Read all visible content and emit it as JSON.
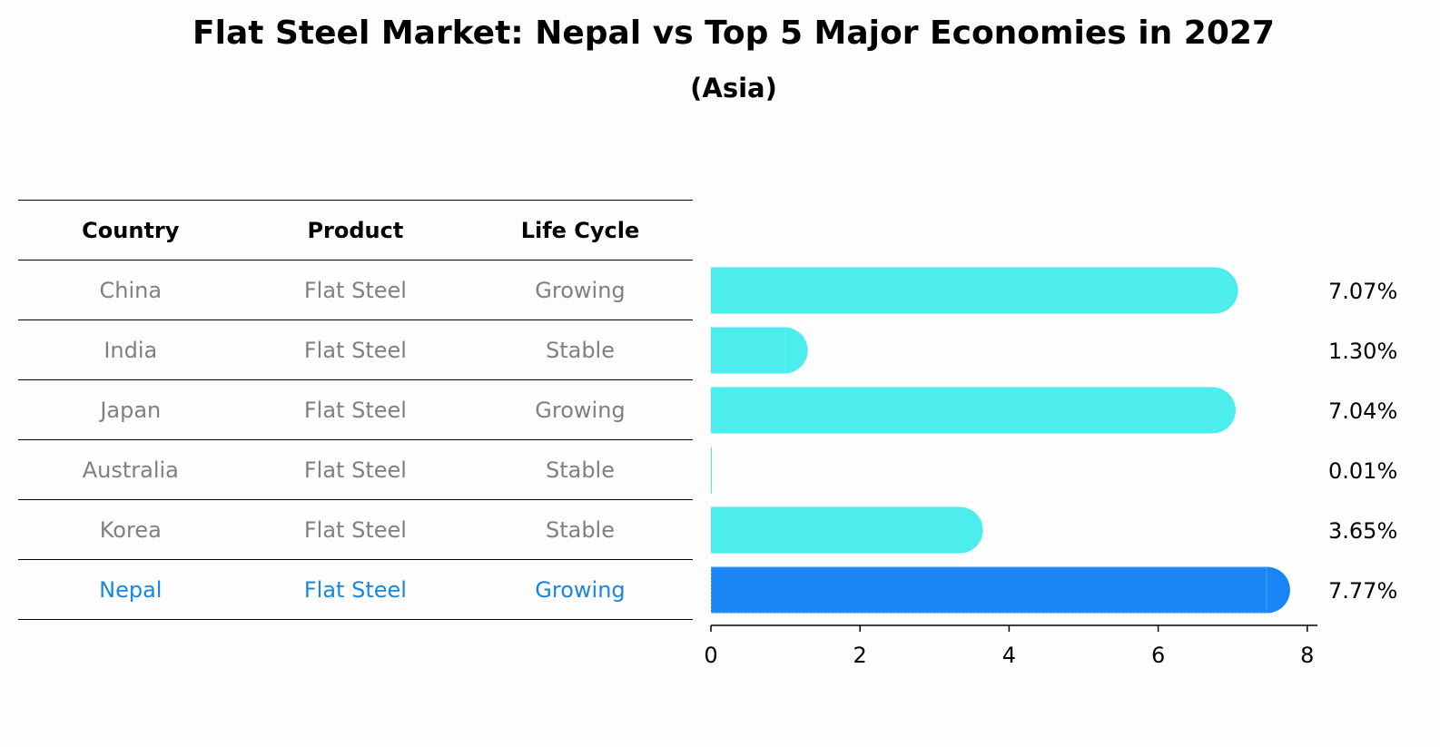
{
  "title": "Flat Steel Market: Nepal vs Top 5 Major Economies in 2027",
  "subtitle": "(Asia)",
  "table": {
    "headers": [
      "Country",
      "Product",
      "Life Cycle"
    ],
    "rows": [
      {
        "country": "China",
        "product": "Flat Steel",
        "life_cycle": "Growing"
      },
      {
        "country": "India",
        "product": "Flat Steel",
        "life_cycle": "Stable"
      },
      {
        "country": "Japan",
        "product": "Flat Steel",
        "life_cycle": "Growing"
      },
      {
        "country": "Australia",
        "product": "Flat Steel",
        "life_cycle": "Stable"
      },
      {
        "country": "Korea",
        "product": "Flat Steel",
        "life_cycle": "Stable"
      },
      {
        "country": "Nepal",
        "product": "Flat Steel",
        "life_cycle": "Growing"
      }
    ]
  },
  "chart_data": {
    "type": "bar",
    "orientation": "horizontal",
    "title": "Flat Steel Market: Nepal vs Top 5 Major Economies in 2027",
    "subtitle": "(Asia)",
    "categories": [
      "China",
      "India",
      "Japan",
      "Australia",
      "Korea",
      "Nepal"
    ],
    "values": [
      7.07,
      1.3,
      7.04,
      0.01,
      3.65,
      7.77
    ],
    "value_labels": [
      "7.07%",
      "1.30%",
      "7.04%",
      "0.01%",
      "3.65%",
      "7.77%"
    ],
    "highlight": "Nepal",
    "xlim": [
      0,
      8.2
    ],
    "xticks": [
      0,
      2,
      4,
      6,
      8
    ],
    "grid": false,
    "colors": {
      "bar": "#4deced",
      "highlight": "#1a86f5",
      "highlight_text": "#1a86e0",
      "muted_text": "#808080"
    }
  }
}
